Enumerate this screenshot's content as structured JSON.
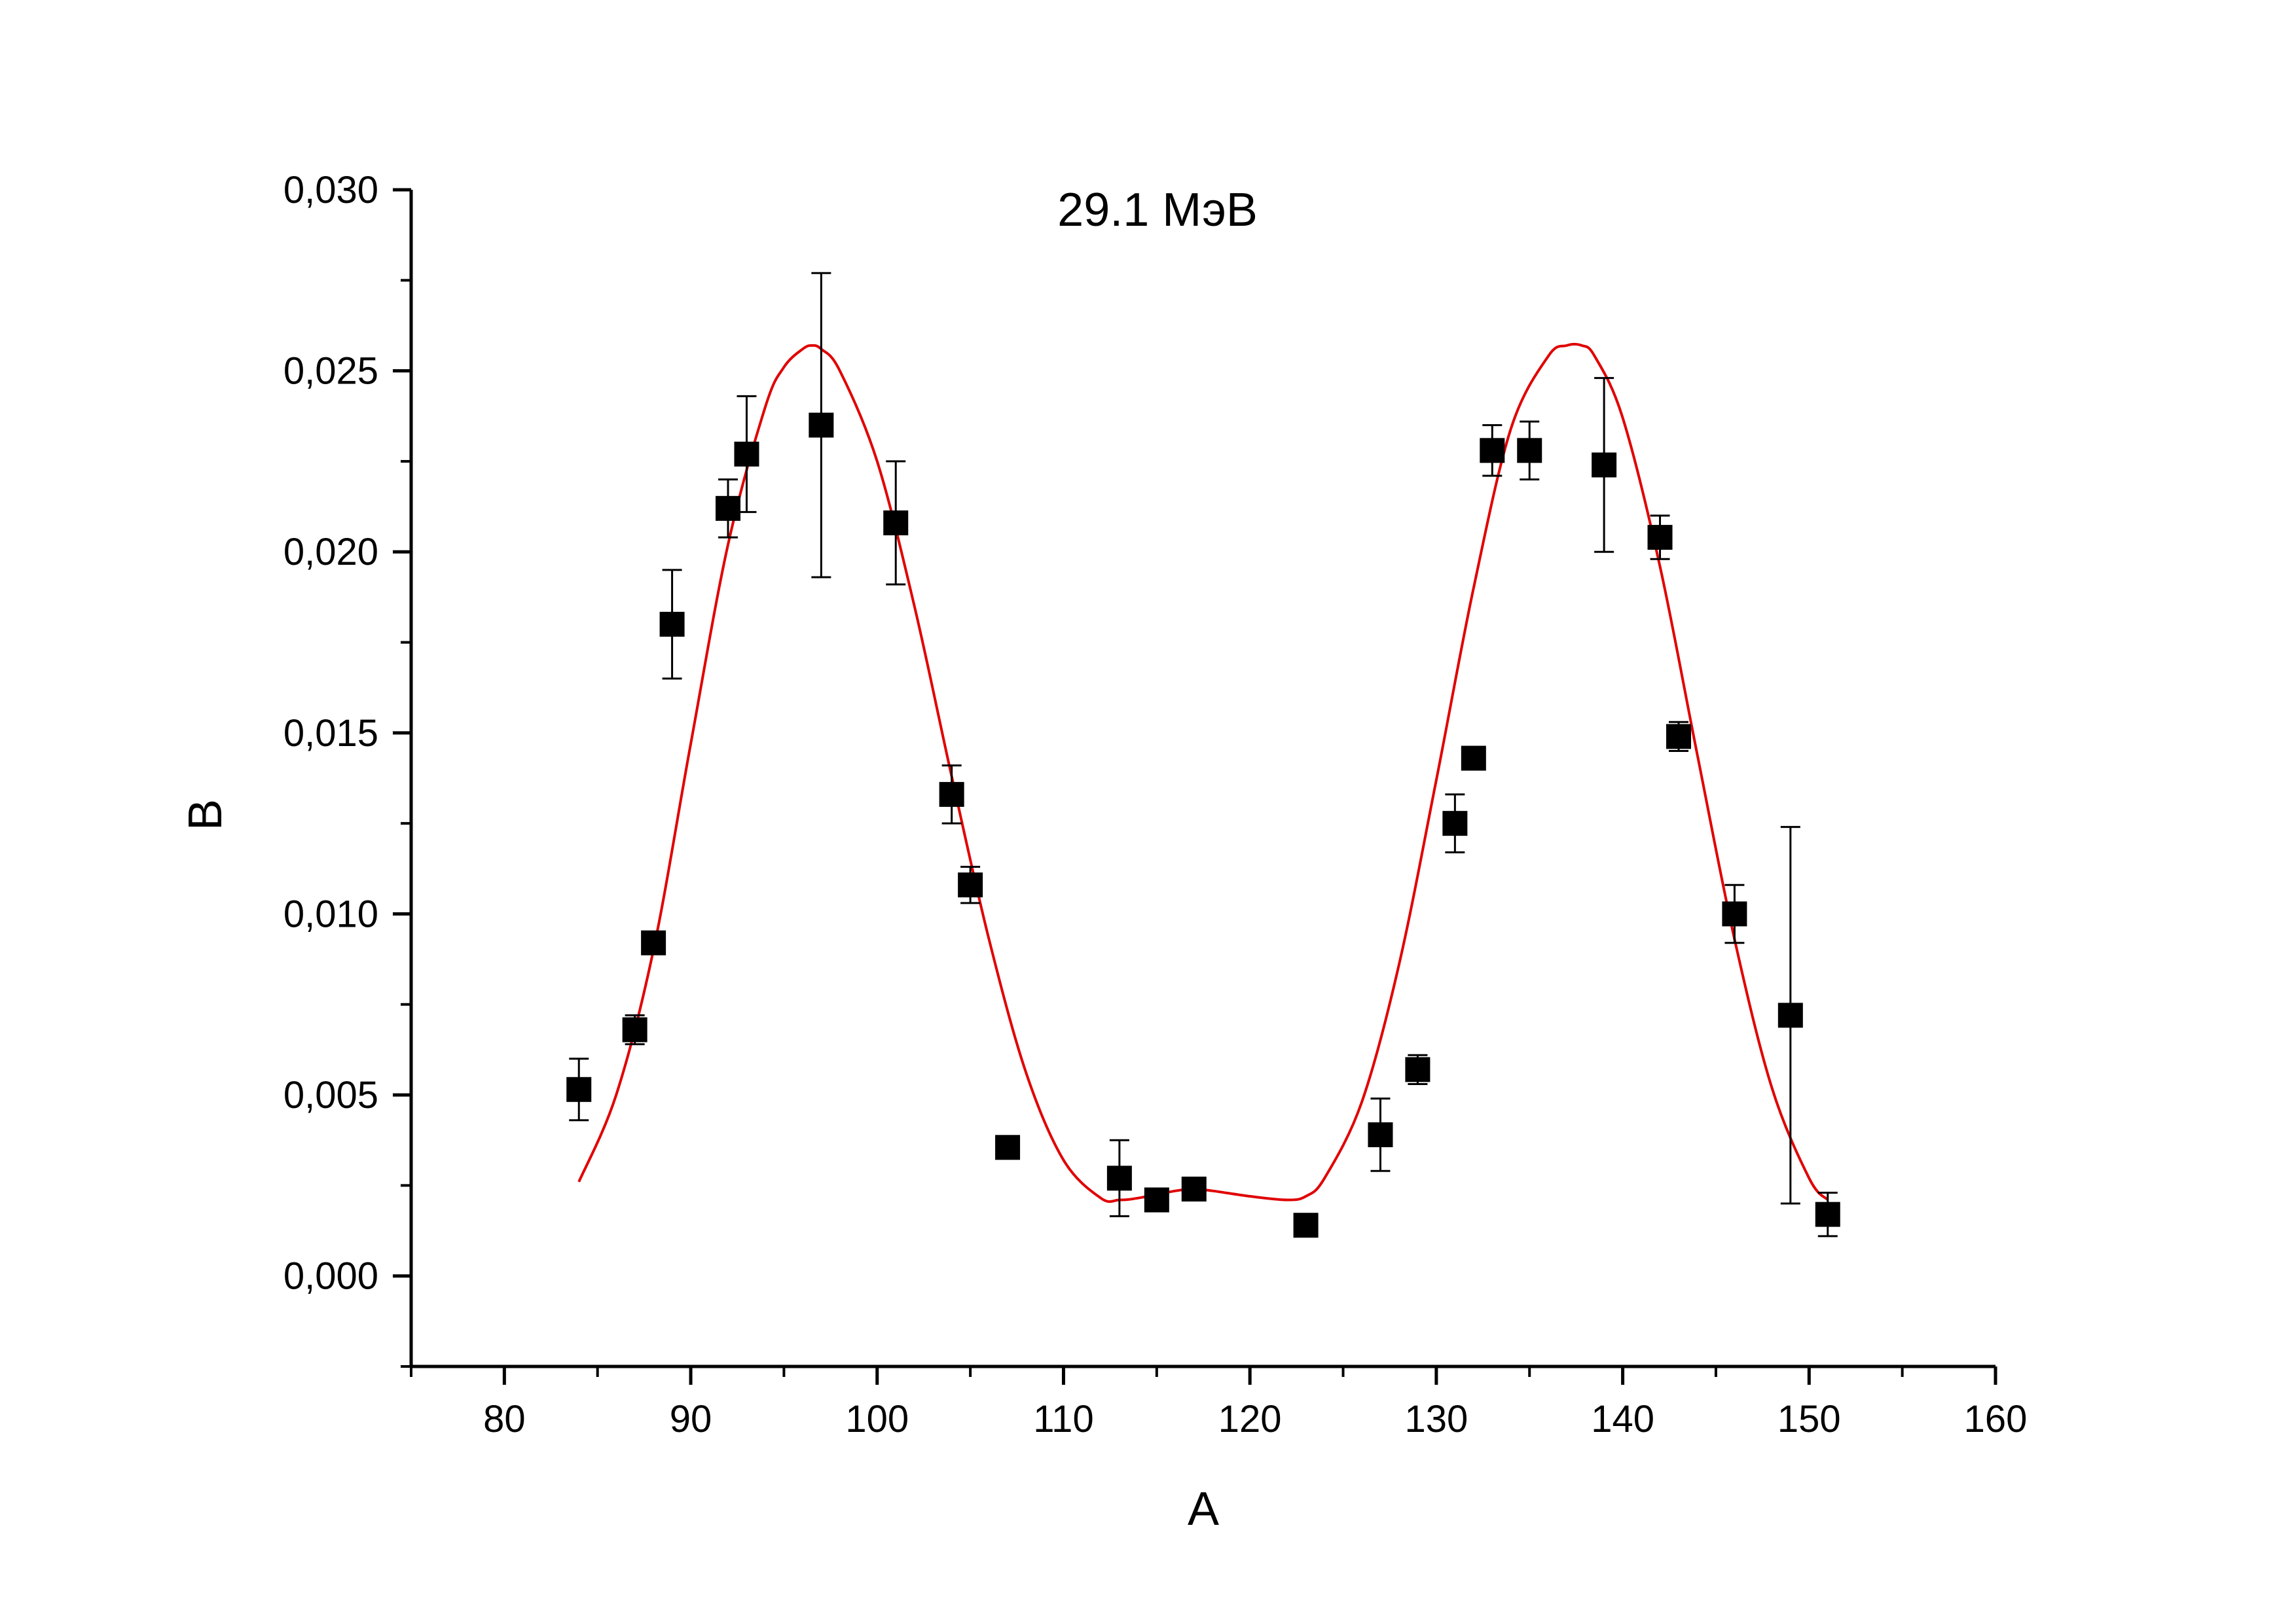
{
  "chart_data": {
    "type": "scatter",
    "title": "29.1 МэВ",
    "xlabel": "A",
    "ylabel": "B",
    "xlim": [
      75,
      160
    ],
    "ylim": [
      -0.0025,
      0.03
    ],
    "x_ticks": [
      80,
      90,
      100,
      110,
      120,
      130,
      140,
      150,
      160
    ],
    "x_tick_labels": [
      "80",
      "90",
      "100",
      "110",
      "120",
      "130",
      "140",
      "150",
      "160"
    ],
    "y_ticks": [
      0.0,
      0.005,
      0.01,
      0.015,
      0.02,
      0.025,
      0.03
    ],
    "y_tick_labels": [
      "0,000",
      "0,005",
      "0,010",
      "0,015",
      "0,020",
      "0,025",
      "0,030"
    ],
    "grid": false,
    "legend": "none",
    "series": [
      {
        "kind": "points-with-errorbars",
        "color": "#000000",
        "marker": "square",
        "points": [
          {
            "x": 84,
            "y": 0.00515,
            "err": 0.00085
          },
          {
            "x": 87,
            "y": 0.0068,
            "err": 0.0004
          },
          {
            "x": 88,
            "y": 0.0092,
            "err": 0.0003
          },
          {
            "x": 89,
            "y": 0.018,
            "err": 0.0015
          },
          {
            "x": 92,
            "y": 0.0212,
            "err": 0.0008
          },
          {
            "x": 93,
            "y": 0.0227,
            "err": 0.0016
          },
          {
            "x": 97,
            "y": 0.0235,
            "err": 0.0042
          },
          {
            "x": 101,
            "y": 0.0208,
            "err": 0.0017
          },
          {
            "x": 104,
            "y": 0.0133,
            "err": 0.0008
          },
          {
            "x": 105,
            "y": 0.0108,
            "err": 0.0005
          },
          {
            "x": 107,
            "y": 0.00355,
            "err": 0.0003
          },
          {
            "x": 113,
            "y": 0.0027,
            "err": 0.00105
          },
          {
            "x": 115,
            "y": 0.0021,
            "err": 0.0002
          },
          {
            "x": 117,
            "y": 0.0024,
            "err": 0.0002
          },
          {
            "x": 123,
            "y": 0.0014,
            "err": 0.0002
          },
          {
            "x": 127,
            "y": 0.0039,
            "err": 0.001
          },
          {
            "x": 129,
            "y": 0.0057,
            "err": 0.0004
          },
          {
            "x": 131,
            "y": 0.0125,
            "err": 0.0008
          },
          {
            "x": 132,
            "y": 0.0143,
            "err": 0.0003
          },
          {
            "x": 133,
            "y": 0.0228,
            "err": 0.0007
          },
          {
            "x": 135,
            "y": 0.0228,
            "err": 0.0008
          },
          {
            "x": 139,
            "y": 0.0224,
            "err": 0.0024
          },
          {
            "x": 142,
            "y": 0.0204,
            "err": 0.0006
          },
          {
            "x": 143,
            "y": 0.0149,
            "err": 0.0004
          },
          {
            "x": 146,
            "y": 0.01,
            "err": 0.0008
          },
          {
            "x": 149,
            "y": 0.0072,
            "err": 0.0052
          },
          {
            "x": 151,
            "y": 0.0017,
            "err": 0.0006
          }
        ]
      },
      {
        "kind": "fit-curve",
        "color": "#e00000",
        "x": [
          84,
          86,
          88,
          90,
          92,
          94,
          95,
          96,
          96.5,
          97,
          98,
          100,
          102,
          104,
          106,
          108,
          110,
          112,
          113,
          114,
          116,
          117,
          118,
          120,
          122,
          123,
          124,
          126,
          128,
          130,
          132,
          134,
          136,
          137,
          137.8,
          138.5,
          140,
          142,
          144,
          146,
          148,
          150,
          151
        ],
        "y": [
          0.0026,
          0.005,
          0.009,
          0.0147,
          0.0202,
          0.024,
          0.0251,
          0.0256,
          0.0257,
          0.0256,
          0.025,
          0.0225,
          0.0185,
          0.0138,
          0.0093,
          0.0056,
          0.0032,
          0.00215,
          0.0021,
          0.00215,
          0.00235,
          0.0024,
          0.00235,
          0.0022,
          0.0021,
          0.0022,
          0.0027,
          0.0048,
          0.0086,
          0.0137,
          0.019,
          0.0234,
          0.0254,
          0.0257,
          0.0257,
          0.0254,
          0.0237,
          0.0196,
          0.0144,
          0.0093,
          0.0052,
          0.0027,
          0.0021
        ]
      }
    ]
  }
}
